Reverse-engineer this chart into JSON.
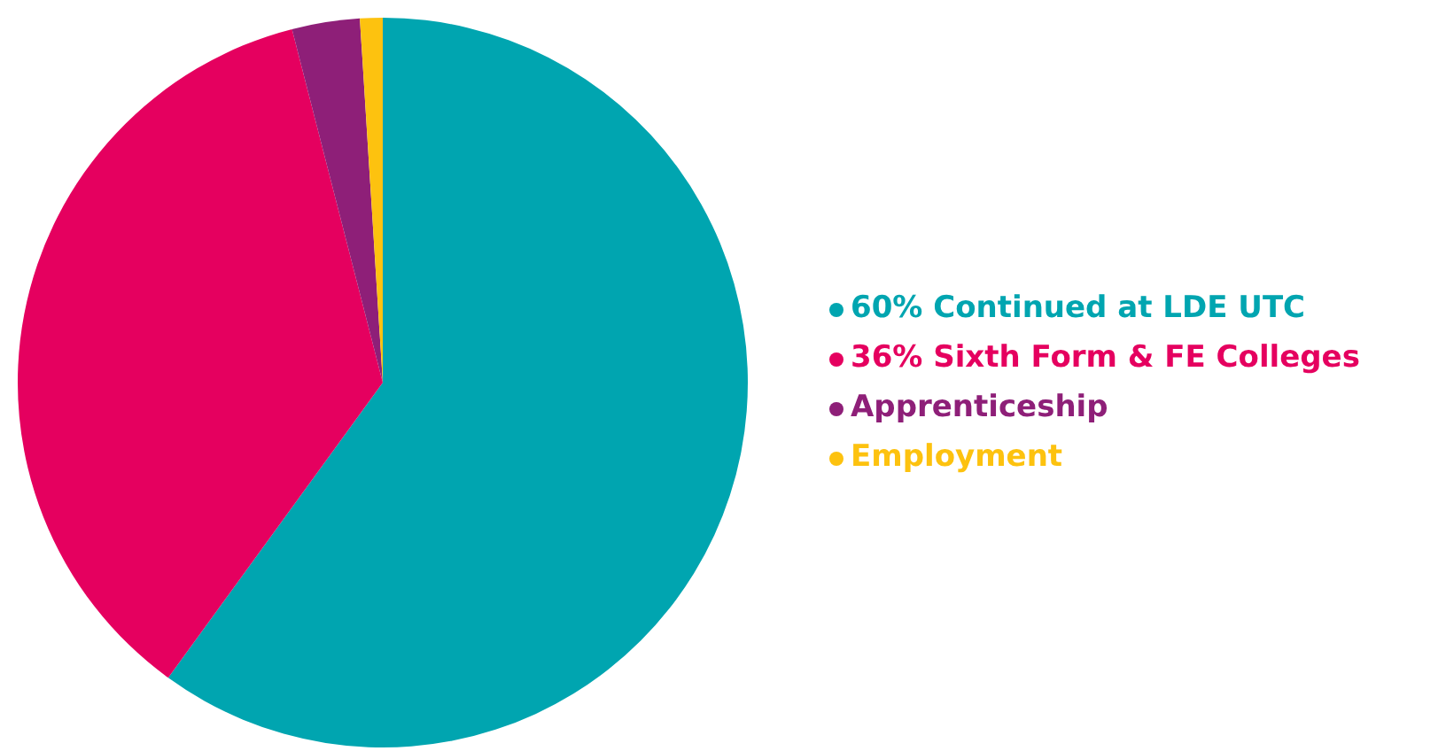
{
  "chart_data": {
    "type": "pie",
    "categories": [
      "60% Continued at LDE UTC",
      "36% Sixth Form & FE Colleges",
      "Apprenticeship",
      "Employment"
    ],
    "values": [
      60,
      36,
      3,
      1
    ],
    "colors": [
      "#00a5b0",
      "#e5005f",
      "#8e1f78",
      "#fdc20f"
    ],
    "legend": "right"
  }
}
